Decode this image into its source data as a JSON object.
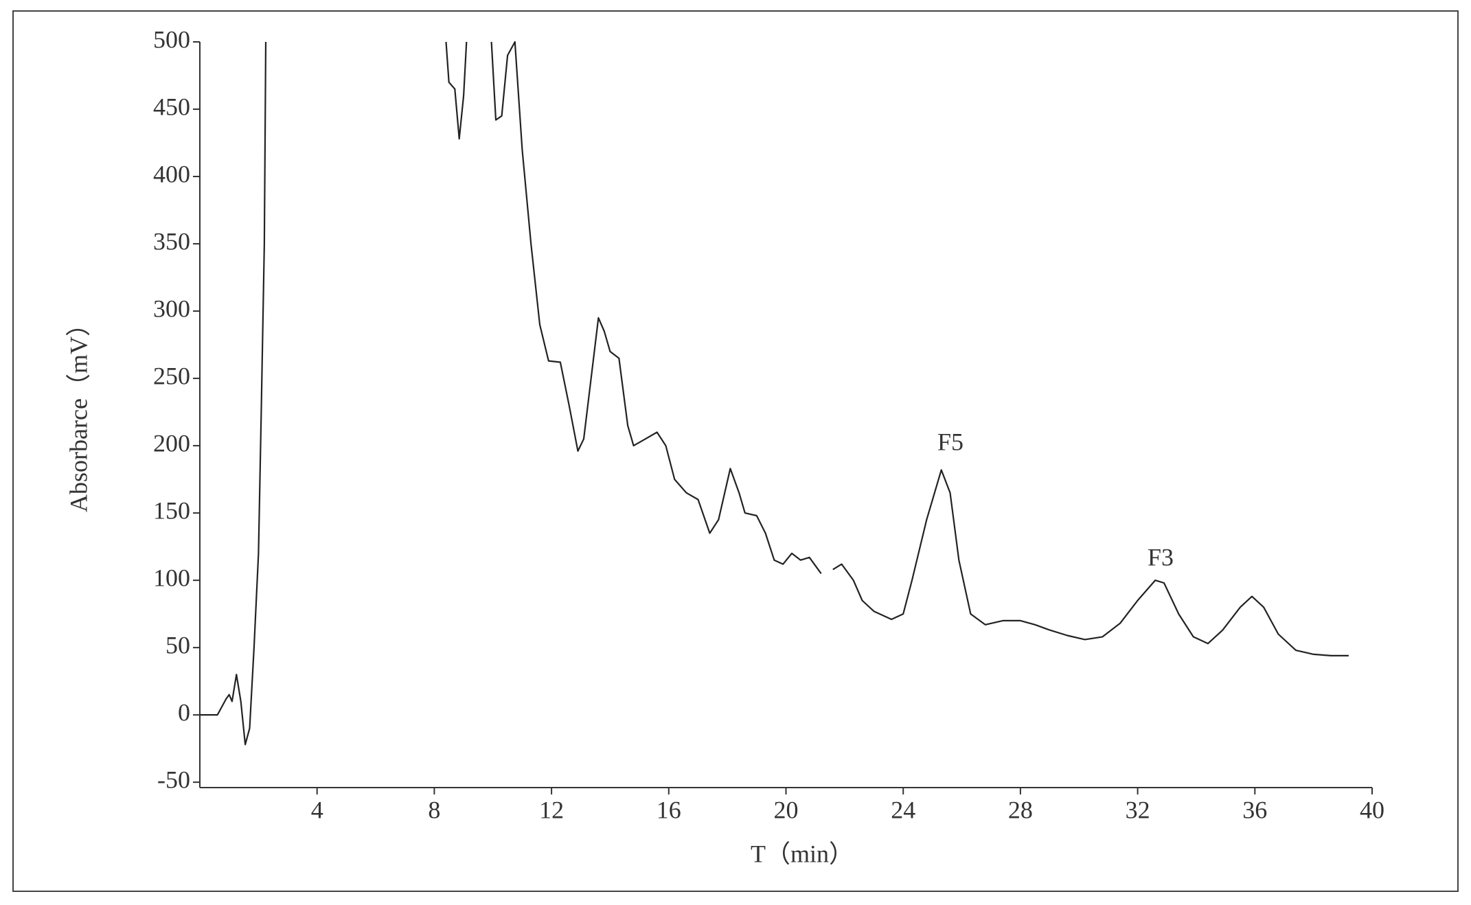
{
  "chart_data": {
    "type": "line",
    "x_label": "T（min）",
    "y_label": "Absorbarce（mV）",
    "annotations": [
      "F5",
      "F3"
    ],
    "xlim": [
      0,
      40
    ],
    "xticks": [
      4,
      8,
      12,
      16,
      20,
      24,
      28,
      32,
      36,
      40
    ],
    "ylim": [
      -54,
      500
    ],
    "yticks": [
      -50,
      0,
      50,
      100,
      150,
      200,
      250,
      300,
      350,
      400,
      450,
      500
    ],
    "grid": false,
    "series": [
      {
        "color": "#222222",
        "x": [
          0,
          0.6,
          0.9,
          1.0,
          1.1,
          1.25,
          1.4,
          1.55,
          1.7,
          1.85,
          2.0,
          2.1,
          2.2,
          2.25,
          5.3,
          8.4,
          8.5,
          8.7,
          8.85,
          9.0,
          9.1,
          9.5,
          9.95,
          10.1,
          10.3,
          10.5,
          10.75,
          11.0,
          11.3,
          11.6,
          11.9,
          12.3,
          12.6,
          12.9,
          13.1,
          13.35,
          13.6,
          13.8,
          14.0,
          14.3,
          14.6,
          14.8,
          15.2,
          15.6,
          15.9,
          16.2,
          16.6,
          17.0,
          17.4,
          17.7,
          18.1,
          18.4,
          18.6,
          19.0,
          19.3,
          19.6,
          19.9,
          20.2,
          20.5,
          20.8,
          21.2,
          21.4,
          21.6,
          21.9,
          22.3,
          22.6,
          23.0,
          23.6,
          24.0,
          24.3,
          24.8,
          25.3,
          25.6,
          25.9,
          26.3,
          26.8,
          27.4,
          28.0,
          28.5,
          29.0,
          29.6,
          30.2,
          30.8,
          31.4,
          32.0,
          32.6,
          32.9,
          33.4,
          33.9,
          34.4,
          34.9,
          35.5,
          35.9,
          36.3,
          36.8,
          37.4,
          38.0,
          38.6,
          39.2
        ],
        "values": [
          0,
          0,
          12,
          15,
          10,
          30,
          10,
          -22,
          -10,
          50,
          120,
          230,
          350,
          500,
          null,
          500,
          470,
          465,
          428,
          460,
          500,
          null,
          500,
          442,
          445,
          490,
          500,
          420,
          350,
          290,
          263,
          262,
          230,
          196,
          205,
          250,
          295,
          285,
          270,
          265,
          215,
          200,
          205,
          210,
          200,
          175,
          165,
          160,
          135,
          145,
          183,
          165,
          150,
          148,
          135,
          115,
          112,
          120,
          115,
          117,
          105,
          null,
          108,
          112,
          100,
          85,
          77,
          71,
          75,
          100,
          145,
          182,
          165,
          115,
          75,
          67,
          70,
          70,
          67,
          63,
          59,
          56,
          58,
          68,
          85,
          100,
          98,
          75,
          58,
          53,
          63,
          80,
          88,
          80,
          60,
          48,
          45,
          44,
          44
        ]
      }
    ]
  }
}
